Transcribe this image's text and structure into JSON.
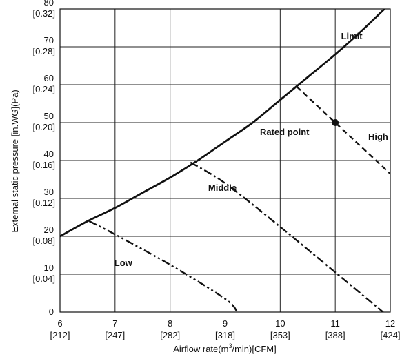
{
  "chart_data": {
    "type": "line",
    "xlabel_pre": "Airflow rate(m",
    "xlabel_sup": "3",
    "xlabel_post": "/min)[CFM]",
    "ylabel": "External static pressure  [in.WG](Pa)",
    "xlim": [
      6,
      12
    ],
    "ylim": [
      0,
      80
    ],
    "grid": true,
    "x_ticks": [
      {
        "value": 6,
        "label": "6",
        "sub": "[212]"
      },
      {
        "value": 7,
        "label": "7",
        "sub": "[247]"
      },
      {
        "value": 8,
        "label": "8",
        "sub": "[282]"
      },
      {
        "value": 9,
        "label": "9",
        "sub": "[318]"
      },
      {
        "value": 10,
        "label": "10",
        "sub": "[353]"
      },
      {
        "value": 11,
        "label": "11",
        "sub": "[388]"
      },
      {
        "value": 12,
        "label": "12",
        "sub": "[424]"
      }
    ],
    "y_ticks": [
      {
        "value": 0,
        "label": "0",
        "sub": ""
      },
      {
        "value": 10,
        "label": "10",
        "sub": "[0.04]"
      },
      {
        "value": 20,
        "label": "20",
        "sub": "[0.08]"
      },
      {
        "value": 30,
        "label": "30",
        "sub": "[0.12]"
      },
      {
        "value": 40,
        "label": "40",
        "sub": "[0.16]"
      },
      {
        "value": 50,
        "label": "50",
        "sub": "[0.20]"
      },
      {
        "value": 60,
        "label": "60",
        "sub": "[0.24]"
      },
      {
        "value": 70,
        "label": "70",
        "sub": "[0.28]"
      },
      {
        "value": 80,
        "label": "80",
        "sub": "[0.32]"
      }
    ],
    "series": [
      {
        "name": "Limit",
        "style": "solid",
        "x": [
          6.0,
          6.5,
          7.0,
          7.5,
          8.0,
          8.5,
          9.0,
          9.5,
          10.0,
          10.5,
          11.0,
          11.5,
          11.93
        ],
        "y": [
          20,
          24,
          27.5,
          31.5,
          35.5,
          40,
          45,
          50,
          56,
          62,
          68,
          74.5,
          80.5
        ]
      },
      {
        "name": "High",
        "style": "dashed",
        "x": [
          10.3,
          11.0,
          12.0
        ],
        "y": [
          59.5,
          50,
          36.5
        ]
      },
      {
        "name": "Middle",
        "style": "dashdot",
        "x": [
          8.37,
          9.0,
          10.0,
          11.0,
          11.87
        ],
        "y": [
          39.5,
          34,
          22.5,
          10.5,
          0
        ]
      },
      {
        "name": "Low",
        "style": "dashdotdot",
        "x": [
          6.53,
          7.0,
          8.0,
          9.0,
          9.22
        ],
        "y": [
          24,
          20.5,
          12.5,
          3.5,
          0
        ]
      }
    ],
    "annotations": [
      {
        "text": "Limit",
        "x": 11.3,
        "y": 72
      },
      {
        "text": "High",
        "x": 11.78,
        "y": 45.5
      },
      {
        "text": "Middle",
        "x": 8.95,
        "y": 32
      },
      {
        "text": "Low",
        "x": 7.15,
        "y": 12.2
      },
      {
        "text": "Rated point",
        "x": 10.08,
        "y": 46.7
      }
    ],
    "rated_point": {
      "x": 11.0,
      "y": 50
    }
  }
}
